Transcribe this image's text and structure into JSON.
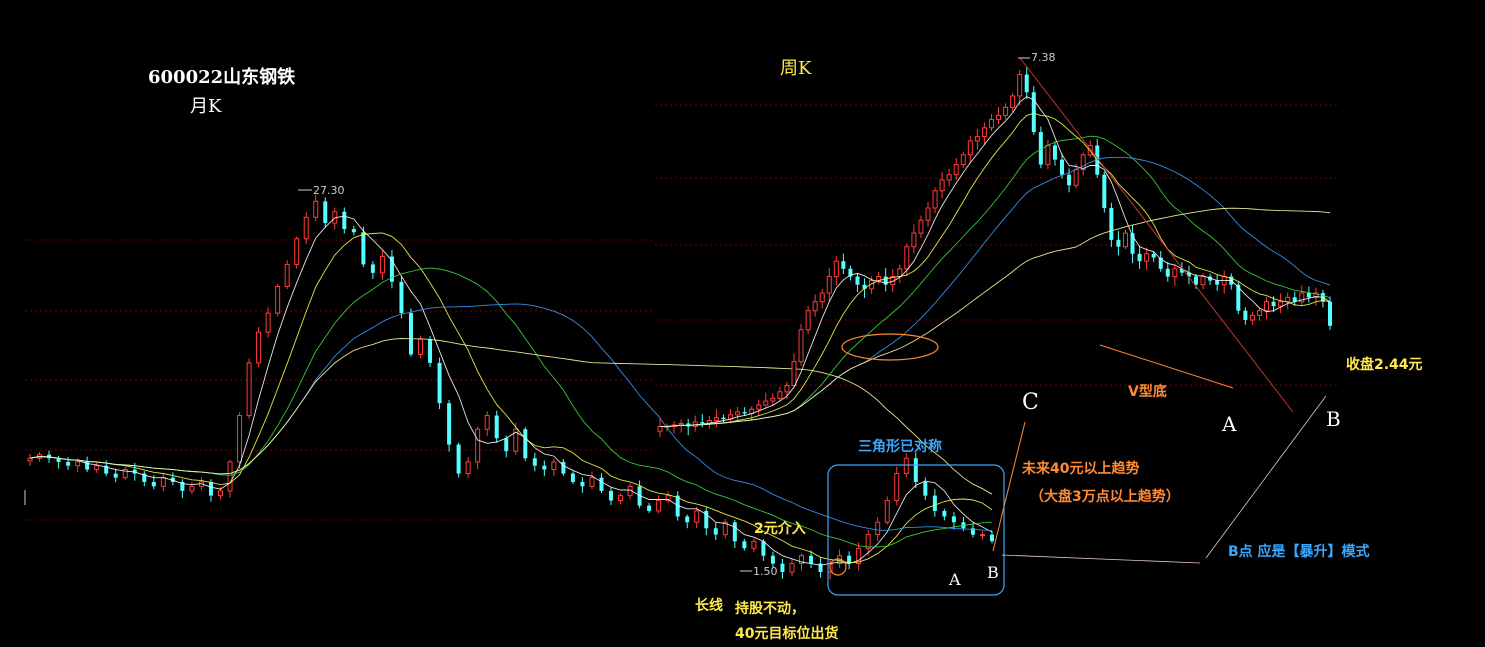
{
  "colors": {
    "up": "#ff3b3b",
    "down": "#54ffff",
    "ma5": "#ffffff",
    "ma10": "#ffff4d",
    "ma20": "#3fdc3f",
    "ma30": "#3a9bff",
    "ma60": "#ffffa0",
    "grid": "#7a0000",
    "yellow": "#ffe94a",
    "orange": "#ff8a33",
    "blue": "#3aa7ff",
    "white": "#ffffff"
  },
  "labels": {
    "stock": "600022山东钢铁",
    "monthly": "月K",
    "weekly": "周K",
    "high_monthly": "27.30",
    "low_monthly": "1.50",
    "high_weekly": "7.38",
    "close": "收盘2.44元",
    "triangle": "三角形已对称",
    "future": "未来40元以上趋势",
    "market": "（大盘3万点以上趋势）",
    "entry": "2元介入",
    "longline": "长线",
    "hold1": "持股不动，",
    "hold2": "40元目标位出货",
    "b_mode": "B点 应是【暴升】模式",
    "v_bottom": "V型底",
    "C": "C",
    "A_w": "A",
    "B_w": "B",
    "A_m": "A",
    "B_m": "B"
  },
  "chart_data": [
    {
      "type": "candlestick",
      "title": "月K",
      "stock": "600022山东钢铁",
      "max_label": "27.30",
      "min_label": "1.50",
      "moving_averages": [
        "ma5",
        "ma10",
        "ma20",
        "ma30",
        "ma60"
      ],
      "grid": true,
      "series_close": [
        3.6,
        3.7,
        3.6,
        3.5,
        3.4,
        3.5,
        3.3,
        3.4,
        3.2,
        3.1,
        3.3,
        3.2,
        3.0,
        2.9,
        3.1,
        3.0,
        2.8,
        2.9,
        3.0,
        2.7,
        2.8,
        3.5,
        5.0,
        7.5,
        9.5,
        11.0,
        13.5,
        16.0,
        19.5,
        23.0,
        26.0,
        22.0,
        24.0,
        21.0,
        20.5,
        16.0,
        15.0,
        17.0,
        14.0,
        11.0,
        8.0,
        9.0,
        7.5,
        5.5,
        4.0,
        3.2,
        3.5,
        4.5,
        5.0,
        4.2,
        3.8,
        4.5,
        3.6,
        3.4,
        3.3,
        3.5,
        3.2,
        3.0,
        2.9,
        3.1,
        2.8,
        2.6,
        2.7,
        2.9,
        2.5,
        2.4,
        2.6,
        2.7,
        2.3,
        2.2,
        2.4,
        2.1,
        2.0,
        2.2,
        1.9,
        1.8,
        1.9,
        1.7,
        1.6,
        1.5,
        1.6,
        1.7,
        1.6,
        1.5,
        1.6,
        1.7,
        1.6,
        1.8,
        2.0,
        2.2,
        2.6,
        3.2,
        3.6,
        3.0,
        2.7,
        2.4,
        2.3,
        2.2,
        2.1,
        2.0,
        2.0,
        1.9
      ]
    },
    {
      "type": "candlestick",
      "title": "周K",
      "max_label": "7.38",
      "moving_averages": [
        "ma5",
        "ma10",
        "ma20",
        "ma30",
        "ma60"
      ],
      "grid": true,
      "series_close": [
        1.6,
        1.6,
        1.61,
        1.62,
        1.6,
        1.63,
        1.62,
        1.64,
        1.66,
        1.65,
        1.68,
        1.7,
        1.69,
        1.72,
        1.75,
        1.78,
        1.8,
        1.85,
        1.9,
        2.1,
        2.4,
        2.6,
        2.7,
        2.8,
        3.0,
        3.2,
        3.1,
        3.0,
        2.9,
        2.85,
        2.95,
        3.0,
        2.9,
        3.0,
        3.1,
        3.4,
        3.6,
        3.8,
        4.0,
        4.3,
        4.5,
        4.6,
        4.8,
        5.0,
        5.3,
        5.4,
        5.6,
        5.8,
        5.9,
        6.1,
        6.4,
        7.0,
        6.5,
        5.5,
        4.8,
        5.2,
        4.9,
        4.6,
        4.4,
        4.7,
        5.0,
        5.2,
        4.6,
        4.0,
        3.5,
        3.4,
        3.6,
        3.3,
        3.2,
        3.3,
        3.25,
        3.1,
        3.0,
        3.1,
        3.05,
        3.0,
        2.9,
        3.0,
        2.95,
        2.9,
        3.0,
        2.9,
        2.6,
        2.5,
        2.55,
        2.6,
        2.7,
        2.65,
        2.7,
        2.75,
        2.7,
        2.8,
        2.75,
        2.8,
        2.7,
        2.44
      ],
      "close_label": "收盘2.44元"
    }
  ]
}
